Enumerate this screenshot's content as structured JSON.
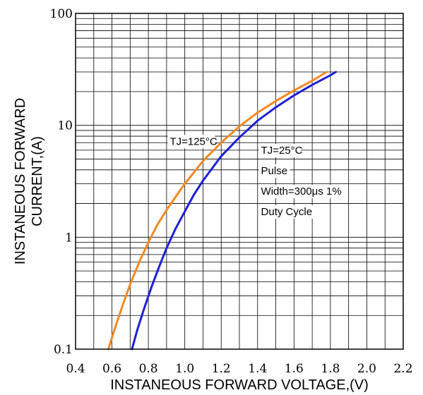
{
  "chart_data": {
    "type": "line",
    "title": "",
    "xlabel": "INSTANEOUS FORWARD VOLTAGE,(V)",
    "ylabel_line1": "INSTANEOUS FORWARD",
    "ylabel_line2": "CURRENT,(A)",
    "xlim": [
      0.4,
      2.2
    ],
    "ylim": [
      0.1,
      100
    ],
    "yscale": "log",
    "grid": true,
    "x_ticks": [
      {
        "value": 0.4,
        "label": "0.4"
      },
      {
        "value": 0.6,
        "label": "0.6"
      },
      {
        "value": 0.8,
        "label": "0.8"
      },
      {
        "value": 1.0,
        "label": "1.0"
      },
      {
        "value": 1.2,
        "label": "1.2"
      },
      {
        "value": 1.4,
        "label": "1.4"
      },
      {
        "value": 1.6,
        "label": "1.6"
      },
      {
        "value": 1.8,
        "label": "1.8"
      },
      {
        "value": 2.0,
        "label": "2.0"
      },
      {
        "value": 2.2,
        "label": "2.2"
      }
    ],
    "y_ticks": [
      {
        "value": 0.1,
        "label": "0.1"
      },
      {
        "value": 1,
        "label": "1"
      },
      {
        "value": 10,
        "label": "10"
      },
      {
        "value": 100,
        "label": "100"
      }
    ],
    "series": [
      {
        "color": "#f08a24",
        "x": [
          0.58,
          0.62,
          0.66,
          0.7,
          0.75,
          0.8,
          0.85,
          0.9,
          0.95,
          1.0,
          1.1,
          1.2,
          1.3,
          1.4,
          1.5,
          1.6,
          1.7,
          1.78
        ],
        "y": [
          0.1,
          0.16,
          0.25,
          0.38,
          0.6,
          0.9,
          1.3,
          1.75,
          2.3,
          3.0,
          4.8,
          7.0,
          9.8,
          13.0,
          16.5,
          20.5,
          25.0,
          30.0
        ]
      },
      {
        "color": "#1f1fd6",
        "x": [
          0.71,
          0.74,
          0.78,
          0.82,
          0.86,
          0.9,
          0.95,
          1.0,
          1.05,
          1.1,
          1.2,
          1.3,
          1.4,
          1.5,
          1.6,
          1.7,
          1.8,
          1.83
        ],
        "y": [
          0.1,
          0.15,
          0.24,
          0.37,
          0.55,
          0.8,
          1.2,
          1.7,
          2.4,
          3.2,
          5.3,
          7.8,
          11.0,
          14.5,
          18.5,
          23.0,
          28.0,
          30.0
        ]
      }
    ],
    "annotations": [
      {
        "lines": [
          "TJ=125°C"
        ],
        "x": 1.1,
        "y": 7.2
      },
      {
        "lines": [
          "TJ=25°C",
          "Pulse",
          "Width=300μs 1%",
          "Duty Cycle"
        ],
        "x": 1.5,
        "y": 3.6
      }
    ]
  }
}
